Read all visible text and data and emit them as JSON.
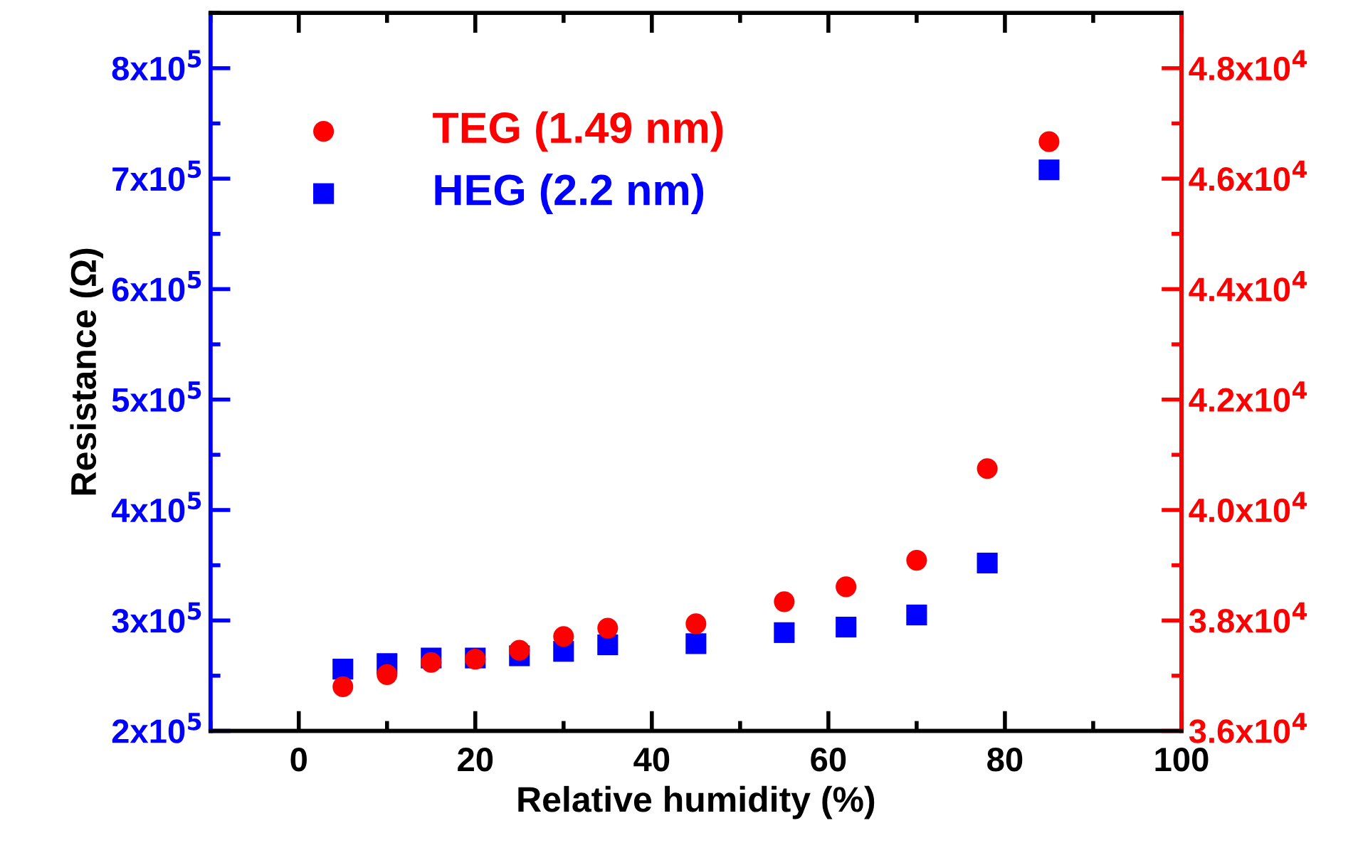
{
  "chart_data": {
    "type": "scatter",
    "xlabel": "Relative humidity (%)",
    "ylabel": "Resistance (Ω)",
    "xlim": [
      -10,
      100
    ],
    "xticks": [
      0,
      20,
      40,
      60,
      80,
      100
    ],
    "ylim": [
      200000,
      850000
    ],
    "yticks": [
      {
        "value": 200000,
        "label": "2x10$^{5}$"
      },
      {
        "value": 300000,
        "label": "3x10$^{5}$"
      },
      {
        "value": 400000,
        "label": "4x10$^{5}$"
      },
      {
        "value": 500000,
        "label": "5x10$^{5}$"
      },
      {
        "value": 600000,
        "label": "6x10$^{5}$"
      },
      {
        "value": 700000,
        "label": "7x10$^{5}$"
      },
      {
        "value": 800000,
        "label": "8x10$^{5}$"
      }
    ],
    "y2lim": [
      36000,
      49000
    ],
    "y2ticks": [
      {
        "value": 36000,
        "label": "3.6x10$^{4}$"
      },
      {
        "value": 38000,
        "label": "3.8x10$^{4}$"
      },
      {
        "value": 40000,
        "label": "4.0x10$^{4}$"
      },
      {
        "value": 42000,
        "label": "4.2x10$^{4}$"
      },
      {
        "value": 44000,
        "label": "4.4x10$^{4}$"
      },
      {
        "value": 46000,
        "label": "4.6x10$^{4}$"
      },
      {
        "value": 48000,
        "label": "4.8x10$^{4}$"
      }
    ],
    "legend": "top left",
    "grid": false,
    "series": [
      {
        "name": "TEG (1.49 nm)",
        "color": "#ff0000",
        "axis": "y2",
        "marker": "circle",
        "x": [
          5,
          10,
          15,
          20,
          25,
          30,
          35,
          45,
          55,
          62,
          70,
          78,
          85
        ],
        "values": [
          36800,
          37020,
          37240,
          37300,
          37460,
          37710,
          37860,
          37940,
          38340,
          38610,
          39090,
          40750,
          46670
        ]
      },
      {
        "name": "HEG (2.2 nm)",
        "color": "#0000ff",
        "marker": "square",
        "x": [
          5,
          10,
          15,
          20,
          25,
          30,
          35,
          45,
          55,
          62,
          70,
          78,
          85
        ],
        "values": [
          256000,
          261000,
          266000,
          266000,
          268000,
          272000,
          278000,
          279000,
          289000,
          294000,
          305000,
          352000,
          708000
        ]
      }
    ]
  }
}
